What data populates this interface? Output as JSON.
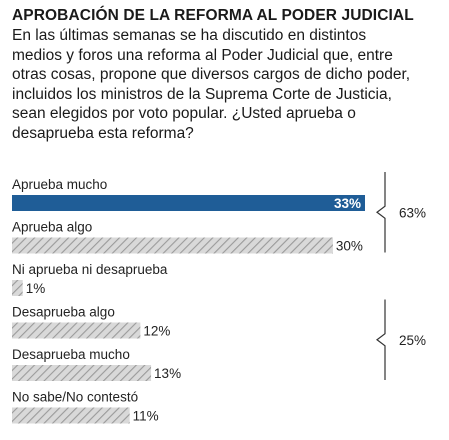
{
  "header": {
    "title": "APROBACIÓN DE LA REFORMA AL PODER JUDICIAL",
    "question": "En las últimas semanas se ha discutido en distintos medios y foros una reforma al Poder Judicial que, entre otras cosas, propone que diversos cargos de dicho poder, incluidos los ministros de la Suprema Corte de Justicia, sean elegidos por voto popular. ¿Usted aprueba o desaprueba esta reforma?"
  },
  "colors": {
    "highlight": "#1f5d97",
    "hatch_bg": "#d9d9d9",
    "hatch_line": "#9a9a9a",
    "bracket": "#333333"
  },
  "chart_data": {
    "type": "bar",
    "orientation": "horizontal",
    "title": "APROBACIÓN DE LA REFORMA AL PODER JUDICIAL",
    "categories": [
      "Aprueba mucho",
      "Aprueba algo",
      "Ni aprueba ni desaprueba",
      "Desaprueba algo",
      "Desaprueba mucho",
      "No sabe/No contestó"
    ],
    "values": [
      33,
      30,
      1,
      12,
      13,
      11
    ],
    "value_labels": [
      "33%",
      "30%",
      "1%",
      "12%",
      "13%",
      "11%"
    ],
    "highlight_index": 0,
    "xlim": [
      0,
      33
    ],
    "groups": [
      {
        "label": "63%",
        "from": 0,
        "to": 1
      },
      {
        "label": "25%",
        "from": 3,
        "to": 4
      }
    ]
  }
}
